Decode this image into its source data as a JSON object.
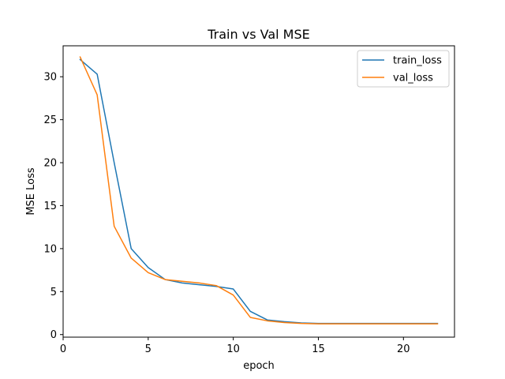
{
  "chart_data": {
    "type": "line",
    "title": "Train vs Val MSE",
    "xlabel": "epoch",
    "ylabel": "MSE Loss",
    "xlim": [
      0,
      23
    ],
    "ylim": [
      -0.3,
      33.6
    ],
    "xticks": [
      0,
      5,
      10,
      15,
      20
    ],
    "yticks": [
      0,
      5,
      10,
      15,
      20,
      25,
      30
    ],
    "grid": false,
    "legend_position": "top-right",
    "x": [
      1,
      2,
      3,
      4,
      5,
      6,
      7,
      8,
      9,
      10,
      11,
      12,
      13,
      14,
      15,
      16,
      17,
      18,
      19,
      20,
      21,
      22
    ],
    "series": [
      {
        "name": "train_loss",
        "color": "#1f77b4",
        "values": [
          32.0,
          30.3,
          20.0,
          10.0,
          7.8,
          6.4,
          6.0,
          5.8,
          5.6,
          5.3,
          2.7,
          1.7,
          1.5,
          1.35,
          1.3,
          1.3,
          1.3,
          1.3,
          1.3,
          1.3,
          1.3,
          1.3
        ]
      },
      {
        "name": "val_loss",
        "color": "#ff7f0e",
        "values": [
          32.3,
          27.9,
          12.6,
          8.9,
          7.2,
          6.4,
          6.2,
          6.0,
          5.7,
          4.6,
          2.0,
          1.6,
          1.4,
          1.3,
          1.25,
          1.25,
          1.25,
          1.25,
          1.25,
          1.25,
          1.25,
          1.25
        ]
      }
    ]
  }
}
